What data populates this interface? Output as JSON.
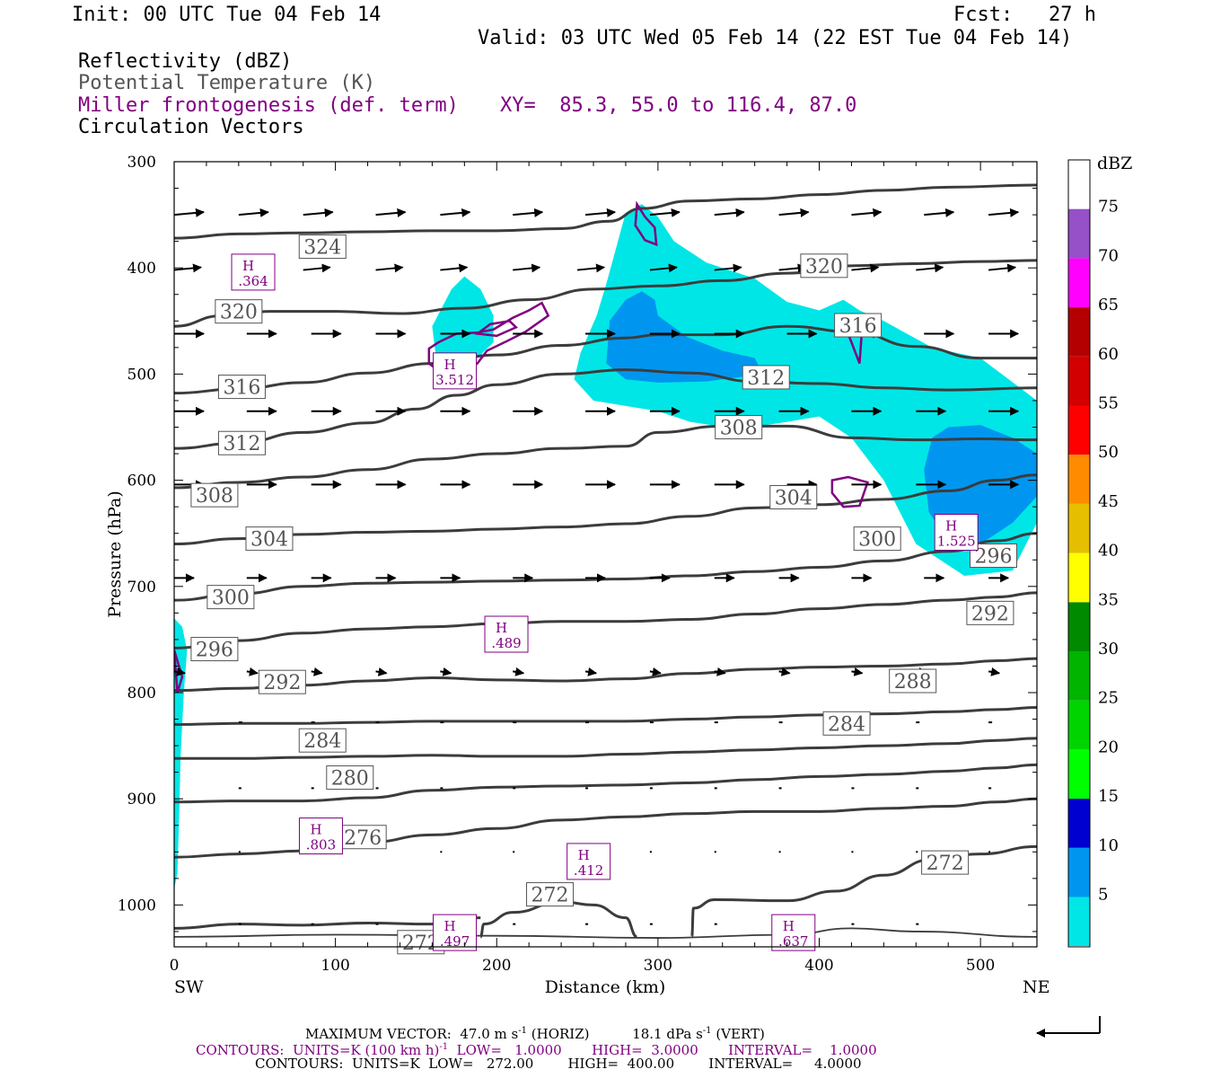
{
  "header": {
    "init": "Init: 00 UTC Tue 04 Feb 14",
    "fcst": "Fcst:   27 h",
    "valid": "Valid: 03 UTC Wed 05 Feb 14 (22 EST Tue 04 Feb 14)",
    "fields": [
      "Reflectivity (dBZ)",
      "Potential Temperature (K)",
      "Miller frontogenesis (def. term)",
      "Circulation Vectors"
    ],
    "xy": "XY=  85.3, 55.0 to 116.4, 87.0"
  },
  "footer": {
    "max_vector": "MAXIMUM VECTOR:  47.0 m s",
    "max_vector_horiz": "(HORIZ)",
    "max_vector_vert": "18.1 dPa s",
    "max_vector_vert_tail": "(VERT)",
    "contours_purple": "CONTOURS:  UNITS=K (100 km h)",
    "contours_purple_tail": "LOW=   1.0000       HIGH=  3.0000       INTERVAL=    1.0000",
    "contours_black": "CONTOURS:  UNITS=K  LOW=   272.00        HIGH=  400.00        INTERVAL=     4.0000"
  },
  "chart_data": {
    "type": "cross-section",
    "xlabel": "Distance (km)",
    "ylabel": "Pressure (hPa)",
    "x_ticks": [
      0,
      100,
      200,
      300,
      400,
      500
    ],
    "y_ticks": [
      300,
      400,
      500,
      600,
      700,
      800,
      900,
      1000
    ],
    "xlim": [
      0,
      535
    ],
    "ylim": [
      1040,
      300
    ],
    "end_labels": {
      "left": "SW",
      "right": "NE"
    },
    "colorbar": {
      "title": "dBZ",
      "levels": [
        5,
        10,
        15,
        20,
        25,
        30,
        35,
        40,
        45,
        50,
        55,
        60,
        65,
        70,
        75
      ],
      "colors": [
        "#00e6e6",
        "#0096f0",
        "#0000d0",
        "#00ff00",
        "#00d400",
        "#00b400",
        "#008a00",
        "#ffff00",
        "#e6be00",
        "#ff8c00",
        "#ff0000",
        "#d20000",
        "#b40000",
        "#ff00ff",
        "#9650c8"
      ],
      "bottom_color": "#ffffff",
      "top_color": "#ffffff"
    },
    "theta_contours": [
      {
        "label": "324",
        "points": [
          [
            0,
            372
          ],
          [
            40,
            368
          ],
          [
            80,
            367
          ],
          [
            120,
            366
          ],
          [
            160,
            365
          ],
          [
            200,
            365
          ],
          [
            240,
            363
          ],
          [
            270,
            356
          ],
          [
            290,
            344
          ],
          [
            320,
            337
          ],
          [
            360,
            335
          ],
          [
            400,
            331
          ],
          [
            440,
            327
          ],
          [
            480,
            324
          ],
          [
            535,
            322
          ]
        ]
      },
      {
        "label": "320",
        "points": [
          [
            0,
            455
          ],
          [
            30,
            445
          ],
          [
            60,
            441
          ],
          [
            100,
            441
          ],
          [
            140,
            443
          ],
          [
            180,
            438
          ],
          [
            220,
            430
          ],
          [
            260,
            420
          ],
          [
            300,
            417
          ],
          [
            340,
            412
          ],
          [
            380,
            405
          ],
          [
            420,
            398
          ],
          [
            460,
            396
          ],
          [
            500,
            394
          ],
          [
            535,
            393
          ]
        ]
      },
      {
        "label": "316",
        "points": [
          [
            0,
            518
          ],
          [
            40,
            514
          ],
          [
            80,
            508
          ],
          [
            120,
            499
          ],
          [
            160,
            490
          ],
          [
            200,
            482
          ],
          [
            240,
            473
          ],
          [
            280,
            466
          ],
          [
            300,
            463
          ],
          [
            340,
            463
          ],
          [
            380,
            455
          ],
          [
            420,
            460
          ],
          [
            460,
            474
          ],
          [
            500,
            485
          ],
          [
            535,
            485
          ]
        ]
      },
      {
        "label": "312",
        "points": [
          [
            0,
            570
          ],
          [
            40,
            565
          ],
          [
            80,
            555
          ],
          [
            120,
            546
          ],
          [
            150,
            533
          ],
          [
            175,
            520
          ],
          [
            200,
            510
          ],
          [
            240,
            500
          ],
          [
            280,
            496
          ],
          [
            320,
            499
          ],
          [
            360,
            507
          ],
          [
            400,
            509
          ],
          [
            440,
            513
          ],
          [
            480,
            515
          ],
          [
            535,
            513
          ]
        ]
      },
      {
        "label": "308",
        "points": [
          [
            0,
            607
          ],
          [
            40,
            602
          ],
          [
            80,
            597
          ],
          [
            120,
            590
          ],
          [
            160,
            580
          ],
          [
            200,
            575
          ],
          [
            240,
            570
          ],
          [
            280,
            568
          ],
          [
            300,
            555
          ],
          [
            340,
            549
          ],
          [
            380,
            549
          ],
          [
            420,
            560
          ],
          [
            460,
            562
          ],
          [
            500,
            561
          ],
          [
            535,
            562
          ]
        ]
      },
      {
        "label": "304",
        "points": [
          [
            0,
            660
          ],
          [
            40,
            655
          ],
          [
            80,
            651
          ],
          [
            120,
            649
          ],
          [
            160,
            648
          ],
          [
            200,
            646
          ],
          [
            240,
            644
          ],
          [
            280,
            641
          ],
          [
            320,
            634
          ],
          [
            360,
            626
          ],
          [
            400,
            623
          ],
          [
            440,
            618
          ],
          [
            480,
            610
          ],
          [
            510,
            600
          ],
          [
            535,
            595
          ]
        ]
      },
      {
        "label": "300",
        "points": [
          [
            0,
            713
          ],
          [
            40,
            707
          ],
          [
            80,
            700
          ],
          [
            120,
            697
          ],
          [
            160,
            696
          ],
          [
            200,
            695
          ],
          [
            240,
            694
          ],
          [
            280,
            693
          ],
          [
            320,
            690
          ],
          [
            360,
            686
          ],
          [
            400,
            682
          ],
          [
            440,
            676
          ],
          [
            480,
            667
          ],
          [
            510,
            657
          ],
          [
            535,
            650
          ]
        ]
      },
      {
        "label": "296",
        "points": [
          [
            0,
            758
          ],
          [
            40,
            751
          ],
          [
            80,
            744
          ],
          [
            120,
            740
          ],
          [
            160,
            738
          ],
          [
            200,
            735
          ],
          [
            240,
            733
          ],
          [
            280,
            733
          ],
          [
            320,
            731
          ],
          [
            360,
            726
          ],
          [
            400,
            721
          ],
          [
            440,
            717
          ],
          [
            480,
            713
          ],
          [
            510,
            710
          ],
          [
            535,
            706
          ]
        ]
      },
      {
        "label": "292",
        "points": [
          [
            0,
            798
          ],
          [
            40,
            796
          ],
          [
            80,
            793
          ],
          [
            120,
            789
          ],
          [
            160,
            786
          ],
          [
            200,
            788
          ],
          [
            240,
            789
          ],
          [
            280,
            787
          ],
          [
            320,
            782
          ],
          [
            360,
            778
          ],
          [
            400,
            776
          ],
          [
            440,
            775
          ],
          [
            480,
            773
          ],
          [
            510,
            770
          ],
          [
            535,
            768
          ]
        ]
      },
      {
        "label": "288",
        "points": [
          [
            0,
            830
          ],
          [
            40,
            829
          ],
          [
            80,
            829
          ],
          [
            120,
            828
          ],
          [
            160,
            827
          ],
          [
            200,
            827
          ],
          [
            240,
            827
          ],
          [
            280,
            827
          ],
          [
            320,
            825
          ],
          [
            360,
            823
          ],
          [
            400,
            821
          ],
          [
            440,
            820
          ],
          [
            480,
            818
          ],
          [
            510,
            816
          ],
          [
            535,
            814
          ]
        ]
      },
      {
        "label": "284",
        "points": [
          [
            0,
            862
          ],
          [
            40,
            862
          ],
          [
            80,
            861
          ],
          [
            120,
            860
          ],
          [
            160,
            859
          ],
          [
            200,
            860
          ],
          [
            240,
            860
          ],
          [
            280,
            858
          ],
          [
            320,
            856
          ],
          [
            360,
            854
          ],
          [
            400,
            852
          ],
          [
            440,
            850
          ],
          [
            480,
            848
          ],
          [
            510,
            845
          ],
          [
            535,
            843
          ]
        ]
      },
      {
        "label": "280",
        "points": [
          [
            0,
            903
          ],
          [
            40,
            902
          ],
          [
            80,
            902
          ],
          [
            120,
            899
          ],
          [
            160,
            892
          ],
          [
            200,
            889
          ],
          [
            240,
            888
          ],
          [
            280,
            887
          ],
          [
            320,
            885
          ],
          [
            360,
            882
          ],
          [
            400,
            879
          ],
          [
            440,
            877
          ],
          [
            480,
            874
          ],
          [
            510,
            871
          ],
          [
            535,
            868
          ]
        ]
      },
      {
        "label": "276",
        "points": [
          [
            0,
            955
          ],
          [
            40,
            952
          ],
          [
            80,
            949
          ],
          [
            120,
            941
          ],
          [
            160,
            934
          ],
          [
            200,
            928
          ],
          [
            240,
            920
          ],
          [
            280,
            917
          ],
          [
            320,
            914
          ],
          [
            360,
            912
          ],
          [
            400,
            912
          ],
          [
            440,
            909
          ],
          [
            480,
            907
          ],
          [
            510,
            903
          ],
          [
            535,
            900
          ]
        ]
      }
    ],
    "theta_label_positions": [
      {
        "label": "324",
        "x": 92,
        "p": 380
      },
      {
        "label": "320",
        "x": 40,
        "p": 441
      },
      {
        "label": "316",
        "x": 42,
        "p": 512
      },
      {
        "label": "312",
        "x": 42,
        "p": 565
      },
      {
        "label": "308",
        "x": 25,
        "p": 614
      },
      {
        "label": "304",
        "x": 59,
        "p": 655
      },
      {
        "label": "300",
        "x": 35,
        "p": 710
      },
      {
        "label": "296",
        "x": 25,
        "p": 759
      },
      {
        "label": "292",
        "x": 67,
        "p": 790
      },
      {
        "label": "284",
        "x": 92,
        "p": 845
      },
      {
        "label": "280",
        "x": 109,
        "p": 880
      },
      {
        "label": "276",
        "x": 117,
        "p": 936
      },
      {
        "label": "272",
        "x": 153,
        "p": 1035
      },
      {
        "label": "272",
        "x": 233,
        "p": 990
      },
      {
        "label": "320",
        "x": 403,
        "p": 398
      },
      {
        "label": "316",
        "x": 424,
        "p": 454
      },
      {
        "label": "312",
        "x": 367,
        "p": 503
      },
      {
        "label": "308",
        "x": 350,
        "p": 550
      },
      {
        "label": "304",
        "x": 384,
        "p": 616
      },
      {
        "label": "300",
        "x": 436,
        "p": 655
      },
      {
        "label": "296",
        "x": 508,
        "p": 671
      },
      {
        "label": "292",
        "x": 506,
        "p": 725
      },
      {
        "label": "288",
        "x": 458,
        "p": 789
      },
      {
        "label": "284",
        "x": 417,
        "p": 829
      },
      {
        "label": "272",
        "x": 478,
        "p": 960
      }
    ],
    "frontogenesis_maxima": [
      {
        "label": "H",
        "value": ".364",
        "x": 49,
        "p": 404
      },
      {
        "label": "H",
        "value": "3.512",
        "x": 174,
        "p": 497
      },
      {
        "label": "H",
        "value": ".489",
        "x": 206,
        "p": 745
      },
      {
        "label": "H",
        "value": "1.525",
        "x": 485,
        "p": 649
      },
      {
        "label": "H",
        "value": ".803",
        "x": 91,
        "p": 935
      },
      {
        "label": "H",
        "value": ".412",
        "x": 257,
        "p": 959
      },
      {
        "label": "H",
        "value": ".497",
        "x": 174,
        "p": 1026
      },
      {
        "label": "H",
        "value": ".637",
        "x": 384,
        "p": 1026
      }
    ]
  }
}
